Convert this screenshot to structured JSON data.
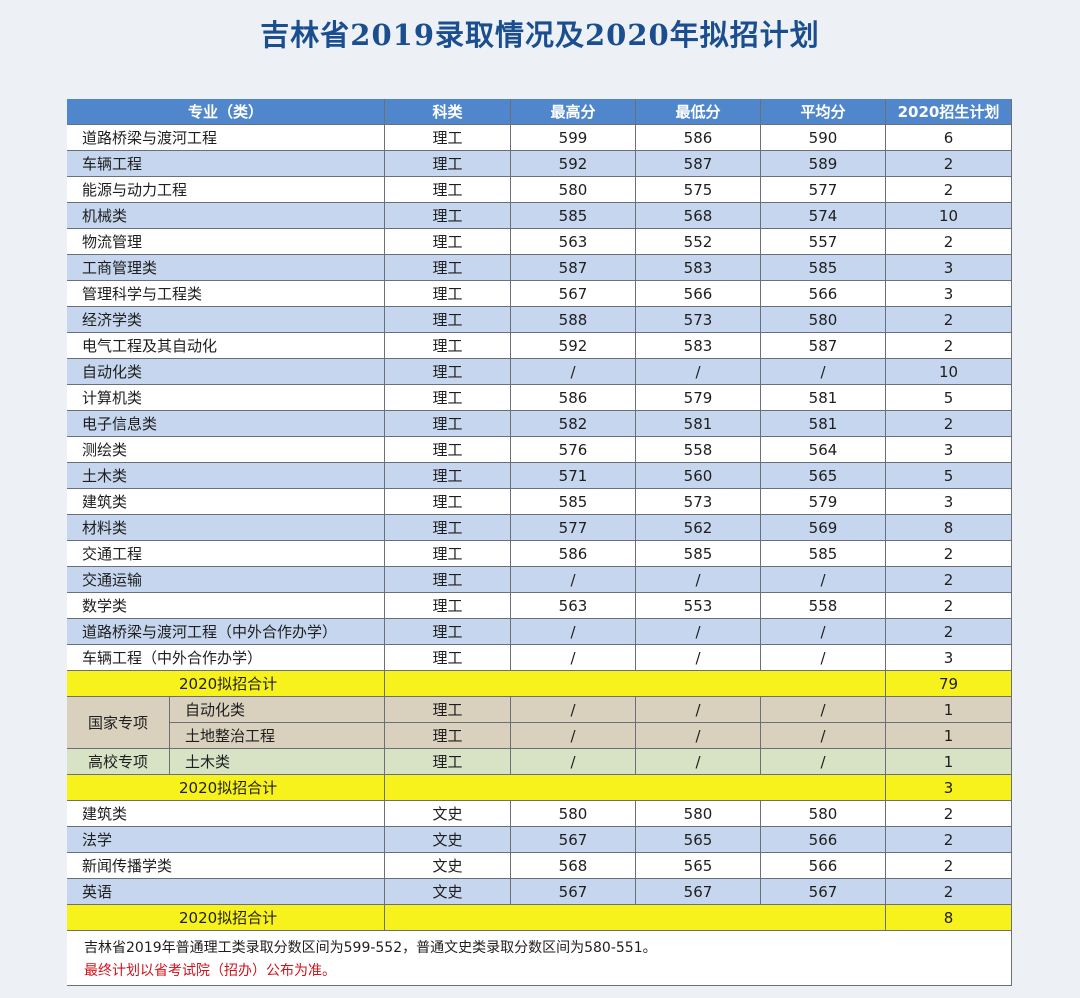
{
  "title": "吉林省2019录取情况及2020年拟招计划",
  "table": {
    "columns": [
      "专业（类）",
      "科类",
      "最高分",
      "最低分",
      "平均分",
      "2020招生计划"
    ],
    "sections": [
      {
        "rows": [
          [
            "道路桥梁与渡河工程",
            "理工",
            599,
            586,
            590,
            6
          ],
          [
            "车辆工程",
            "理工",
            592,
            587,
            589,
            2
          ],
          [
            "能源与动力工程",
            "理工",
            580,
            575,
            577,
            2
          ],
          [
            "机械类",
            "理工",
            585,
            568,
            574,
            10
          ],
          [
            "物流管理",
            "理工",
            563,
            552,
            557,
            2
          ],
          [
            "工商管理类",
            "理工",
            587,
            583,
            585,
            3
          ],
          [
            "管理科学与工程类",
            "理工",
            567,
            566,
            566,
            3
          ],
          [
            "经济学类",
            "理工",
            588,
            573,
            580,
            2
          ],
          [
            "电气工程及其自动化",
            "理工",
            592,
            583,
            587,
            2
          ],
          [
            "自动化类",
            "理工",
            "/",
            "/",
            "/",
            10
          ],
          [
            "计算机类",
            "理工",
            586,
            579,
            581,
            5
          ],
          [
            "电子信息类",
            "理工",
            582,
            581,
            581,
            2
          ],
          [
            "测绘类",
            "理工",
            576,
            558,
            564,
            3
          ],
          [
            "土木类",
            "理工",
            571,
            560,
            565,
            5
          ],
          [
            "建筑类",
            "理工",
            585,
            573,
            579,
            3
          ],
          [
            "材料类",
            "理工",
            577,
            562,
            569,
            8
          ],
          [
            "交通工程",
            "理工",
            586,
            585,
            585,
            2
          ],
          [
            "交通运输",
            "理工",
            "/",
            "/",
            "/",
            2
          ],
          [
            "数学类",
            "理工",
            563,
            553,
            558,
            2
          ],
          [
            "道路桥梁与渡河工程（中外合作办学）",
            "理工",
            "/",
            "/",
            "/",
            2
          ],
          [
            "车辆工程（中外合作办学）",
            "理工",
            "/",
            "/",
            "/",
            3
          ]
        ],
        "total": {
          "label": "2020拟招合计",
          "value": 79
        }
      },
      {
        "groups": [
          {
            "group": "国家专项",
            "rows": [
              [
                "自动化类",
                "理工",
                "/",
                "/",
                "/",
                1
              ],
              [
                "土地整治工程",
                "理工",
                "/",
                "/",
                "/",
                1
              ]
            ]
          },
          {
            "group": "高校专项",
            "rows": [
              [
                "土木类",
                "理工",
                "/",
                "/",
                "/",
                1
              ]
            ]
          }
        ],
        "total": {
          "label": "2020拟招合计",
          "value": 3
        }
      },
      {
        "rows": [
          [
            "建筑类",
            "文史",
            580,
            580,
            580,
            2
          ],
          [
            "法学",
            "文史",
            567,
            565,
            566,
            2
          ],
          [
            "新闻传播学类",
            "文史",
            568,
            565,
            566,
            2
          ],
          [
            "英语",
            "文史",
            567,
            567,
            567,
            2
          ]
        ],
        "total": {
          "label": "2020拟招合计",
          "value": 8
        }
      }
    ],
    "notes": [
      "吉林省2019年普通理工类录取分数区间为599-552，普通文史类录取分数区间为580-551。",
      "最终计划以省考试院（招办）公布为准。"
    ]
  }
}
